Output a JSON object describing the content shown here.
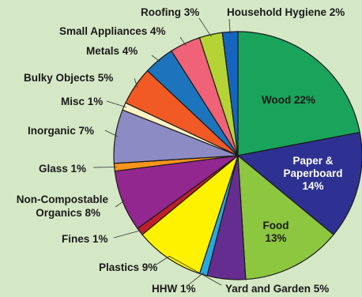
{
  "chart_data": {
    "type": "pie",
    "title": "",
    "slices": [
      {
        "label": "Wood 22%",
        "value": 22,
        "color": "#1aa35a"
      },
      {
        "label": "Paper & Paperboard 14%",
        "value": 14,
        "color": "#2e3191"
      },
      {
        "label": "Food 13%",
        "value": 13,
        "color": "#8dc63f"
      },
      {
        "label": "Yard and Garden 5%",
        "value": 5,
        "color": "#662d91"
      },
      {
        "label": "HHW 1%",
        "value": 1,
        "color": "#27aae1"
      },
      {
        "label": "Plastics 9%",
        "value": 9,
        "color": "#fff200"
      },
      {
        "label": "Fines 1%",
        "value": 1,
        "color": "#be1e2d"
      },
      {
        "label": "Non-Compostable Organics 8%",
        "value": 8,
        "color": "#92278f"
      },
      {
        "label": "Glass 1%",
        "value": 1,
        "color": "#f7941d"
      },
      {
        "label": "Inorganic 7%",
        "value": 7,
        "color": "#8c8bc3"
      },
      {
        "label": "Misc 1%",
        "value": 1,
        "color": "#fdf1c3"
      },
      {
        "label": "Bulky Objects 5%",
        "value": 5,
        "color": "#f15a24"
      },
      {
        "label": "Metals 4%",
        "value": 4,
        "color": "#1c75bc"
      },
      {
        "label": "Small Appliances 4%",
        "value": 4,
        "color": "#f06277"
      },
      {
        "label": "Roofing 3%",
        "value": 3,
        "color": "#b5d334"
      },
      {
        "label": "Household Hygiene 2%",
        "value": 2,
        "color": "#1565c0"
      }
    ],
    "labels": {
      "wood": "Wood 22%",
      "paper_line1": "Paper &",
      "paper_line2": "Paperboard",
      "paper_line3": "14%",
      "food_line1": "Food",
      "food_line2": "13%",
      "yard": "Yard and Garden 5%",
      "hhw": "HHW 1%",
      "plastics": "Plastics 9%",
      "fines": "Fines 1%",
      "nco_line1": "Non-Compostable",
      "nco_line2": "Organics 8%",
      "glass": "Glass 1%",
      "inorganic": "Inorganic 7%",
      "misc": "Misc 1%",
      "bulky": "Bulky Objects 5%",
      "metals": "Metals 4%",
      "small_appliances": "Small Appliances 4%",
      "roofing": "Roofing 3%",
      "household_hygiene": "Household Hygiene 2%"
    },
    "legend": "none",
    "grid": false
  }
}
